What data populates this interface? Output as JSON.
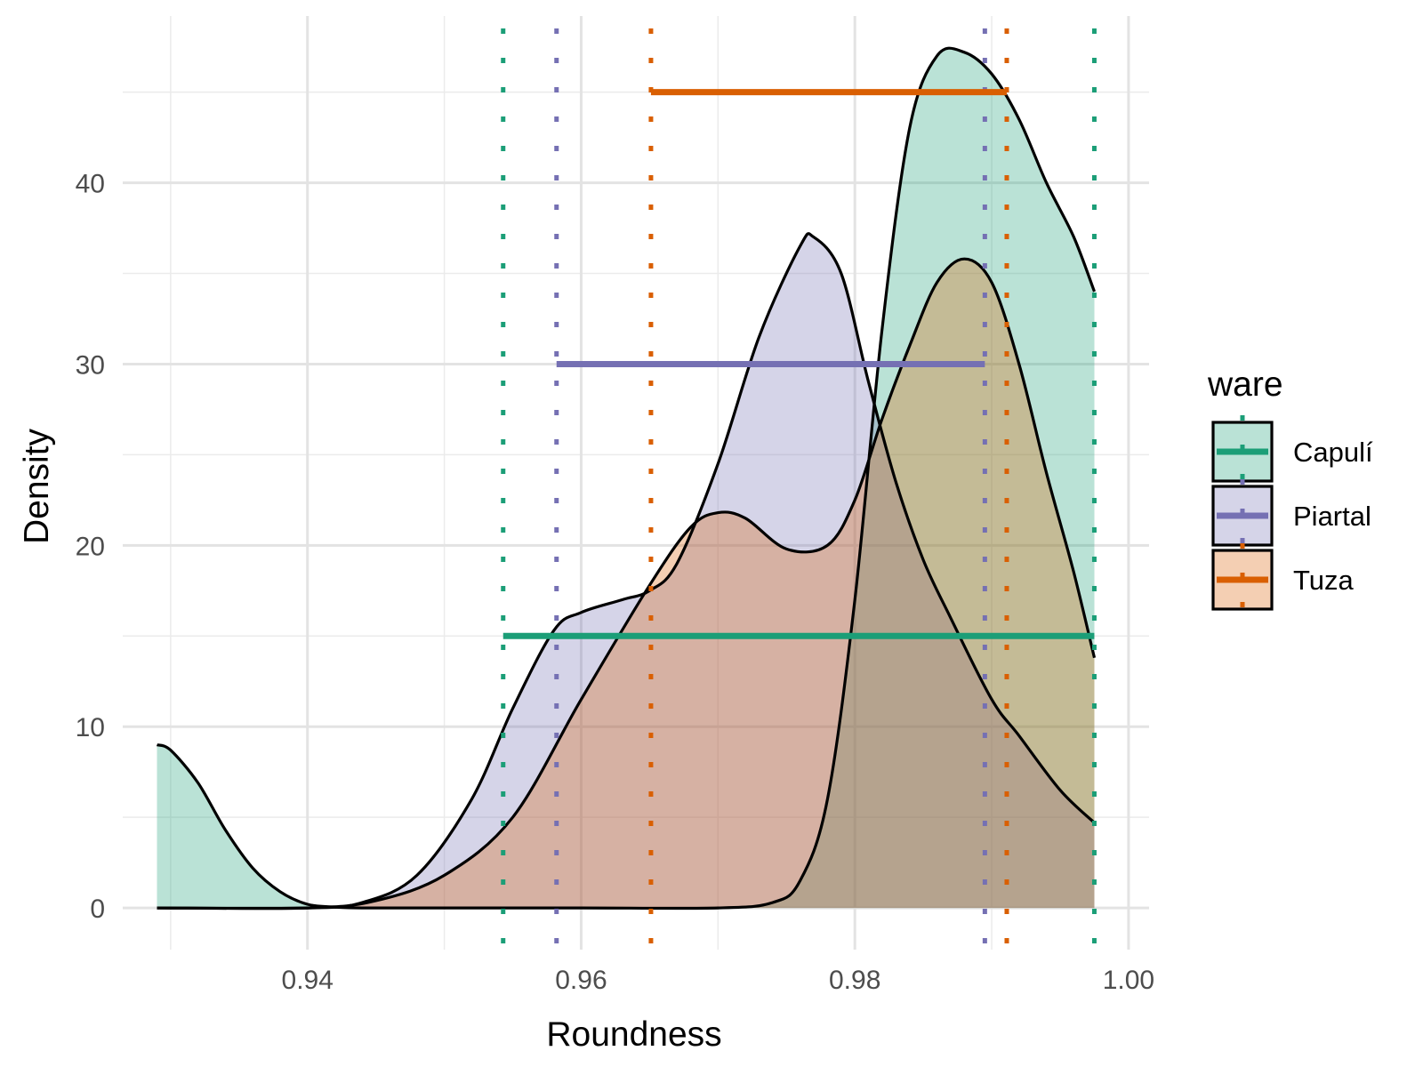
{
  "chart_data": {
    "type": "area",
    "title": "",
    "xlabel": "Roundness",
    "ylabel": "Density",
    "xlim": [
      0.9265,
      1.0015
    ],
    "ylim": [
      -2.3,
      49.2
    ],
    "x_ticks": [
      0.94,
      0.96,
      0.98,
      1.0
    ],
    "x_tick_labels": [
      "0.94",
      "0.96",
      "0.98",
      "1.00"
    ],
    "y_ticks": [
      0,
      10,
      20,
      30,
      40
    ],
    "y_tick_labels": [
      "0",
      "10",
      "20",
      "30",
      "40"
    ],
    "grid": true,
    "legend": {
      "title": "ware",
      "position": "right"
    },
    "series": [
      {
        "name": "Capulí",
        "color": "#1b9e77",
        "fill": "#1b9e77",
        "x": [
          0.929,
          0.93,
          0.932,
          0.934,
          0.936,
          0.938,
          0.94,
          0.942,
          0.944,
          0.95,
          0.96,
          0.97,
          0.974,
          0.976,
          0.978,
          0.98,
          0.982,
          0.984,
          0.986,
          0.988,
          0.99,
          0.992,
          0.994,
          0.996,
          0.9975
        ],
        "values": [
          9.0,
          8.7,
          6.9,
          4.3,
          2.2,
          0.9,
          0.2,
          0.05,
          0.0,
          0.0,
          0.0,
          0.0,
          0.3,
          1.5,
          6.0,
          17.0,
          32.0,
          43.0,
          47.0,
          47.2,
          46.0,
          43.5,
          40.0,
          37.0,
          34.0
        ],
        "interval": {
          "lo": 0.9543,
          "hi": 0.9975,
          "y": 15
        }
      },
      {
        "name": "Piartal",
        "color": "#7570b3",
        "fill": "#7570b3",
        "x": [
          0.929,
          0.94,
          0.944,
          0.948,
          0.952,
          0.955,
          0.958,
          0.96,
          0.963,
          0.965,
          0.967,
          0.97,
          0.973,
          0.976,
          0.977,
          0.979,
          0.981,
          0.983,
          0.985,
          0.987,
          0.99,
          0.992,
          0.995,
          0.9975
        ],
        "values": [
          0.0,
          0.0,
          0.3,
          1.8,
          6.0,
          11.0,
          15.3,
          16.3,
          17.0,
          17.5,
          19.0,
          24.5,
          31.5,
          36.5,
          37.0,
          35.0,
          29.0,
          23.5,
          19.2,
          16.0,
          11.5,
          9.5,
          6.5,
          4.7
        ],
        "interval": {
          "lo": 0.9582,
          "hi": 0.9895,
          "y": 30
        }
      },
      {
        "name": "Tuza",
        "color": "#d95f02",
        "fill": "#d95f02",
        "x": [
          0.929,
          0.94,
          0.945,
          0.95,
          0.955,
          0.96,
          0.965,
          0.968,
          0.97,
          0.972,
          0.975,
          0.978,
          0.98,
          0.982,
          0.984,
          0.986,
          0.988,
          0.99,
          0.992,
          0.994,
          0.996,
          0.9975
        ],
        "values": [
          0.0,
          0.0,
          0.4,
          1.8,
          5.0,
          11.5,
          17.8,
          21.0,
          21.8,
          21.5,
          19.8,
          20.0,
          22.5,
          27.0,
          31.0,
          34.5,
          35.8,
          34.5,
          30.0,
          24.0,
          18.5,
          13.8
        ],
        "interval": {
          "lo": 0.9651,
          "hi": 0.9911,
          "y": 45
        }
      }
    ],
    "vlines": [
      {
        "series": "Capulí",
        "x": [
          0.9543,
          0.9975
        ]
      },
      {
        "series": "Piartal",
        "x": [
          0.9582,
          0.9895
        ]
      },
      {
        "series": "Tuza",
        "x": [
          0.9651,
          0.9911
        ]
      }
    ]
  }
}
